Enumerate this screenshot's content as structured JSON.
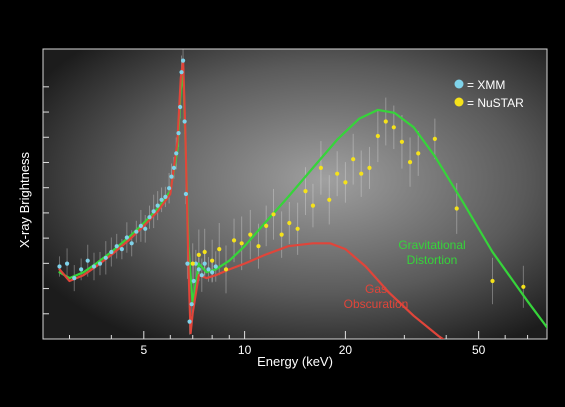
{
  "chart_data": {
    "type": "scatter",
    "title": "",
    "xlabel": "Energy (keV)",
    "ylabel": "X-ray Brightness",
    "xscale": "log",
    "xlim": [
      2.5,
      80
    ],
    "ylim": [
      0,
      10
    ],
    "x_ticks": [
      5,
      10,
      20,
      50
    ],
    "x_tick_labels": [
      "5",
      "10",
      "20",
      "50"
    ],
    "grid": false,
    "legend_position": "top-right",
    "legend": [
      {
        "label": "= XMM",
        "color": "#7fd3ea"
      },
      {
        "label": "= NuSTAR",
        "color": "#f5e21a"
      }
    ],
    "annotations": [
      {
        "text": "Gravitational",
        "color": "#36d43a"
      },
      {
        "text": "Distortion",
        "color": "#36d43a"
      },
      {
        "text": "Gas",
        "color": "#e0453a"
      },
      {
        "text": "Obscuration",
        "color": "#e0453a"
      }
    ],
    "series": [
      {
        "kind": "points",
        "color": "#7fd3ea",
        "x": [
          2.8,
          2.95,
          3.1,
          3.25,
          3.4,
          3.55,
          3.7,
          3.85,
          4.0,
          4.15,
          4.3,
          4.45,
          4.6,
          4.75,
          4.9,
          5.05,
          5.2,
          5.35,
          5.5,
          5.65,
          5.8,
          5.95,
          6.05,
          6.15,
          6.25,
          6.35,
          6.42,
          6.48,
          6.55,
          6.62,
          6.68,
          6.75,
          6.85,
          6.95,
          7.05,
          7.15,
          7.3,
          7.45,
          7.6,
          7.8,
          8.0,
          8.2
        ],
        "y": [
          2.5,
          2.6,
          2.1,
          2.4,
          2.7,
          2.5,
          2.6,
          2.8,
          3.0,
          3.2,
          3.1,
          3.5,
          3.3,
          3.7,
          3.9,
          3.8,
          4.2,
          4.4,
          4.6,
          4.8,
          4.9,
          5.2,
          5.6,
          5.9,
          6.4,
          7.1,
          8.0,
          9.2,
          9.6,
          7.5,
          5.0,
          2.6,
          0.6,
          1.2,
          2.0,
          2.6,
          2.4,
          2.2,
          2.6,
          2.4,
          2.3,
          2.5
        ]
      },
      {
        "kind": "points",
        "color": "#f5e21a",
        "x": [
          7.0,
          7.3,
          7.6,
          8.0,
          8.4,
          8.8,
          9.3,
          9.8,
          10.4,
          11.0,
          11.6,
          12.2,
          12.9,
          13.6,
          14.4,
          15.2,
          16.0,
          16.9,
          17.9,
          18.9,
          20.0,
          21.1,
          22.3,
          23.6,
          25.0,
          26.4,
          27.9,
          29.5,
          31.2,
          33.0,
          37.0,
          43.0,
          55.0,
          68.0
        ],
        "y": [
          2.6,
          2.9,
          3.0,
          2.7,
          3.1,
          2.4,
          3.4,
          3.3,
          3.6,
          3.2,
          3.9,
          4.3,
          3.6,
          4.0,
          3.8,
          5.1,
          4.6,
          5.9,
          4.8,
          5.7,
          5.4,
          6.2,
          5.7,
          5.9,
          7.0,
          7.5,
          7.3,
          6.8,
          6.1,
          6.4,
          6.9,
          4.5,
          2.0,
          1.8
        ]
      },
      {
        "kind": "model-line",
        "name": "Gravitational Distortion",
        "color": "#36d43a",
        "x": [
          2.8,
          3.0,
          3.3,
          3.6,
          4.0,
          4.5,
          5.0,
          5.5,
          6.0,
          6.3,
          6.45,
          6.55,
          6.65,
          6.8,
          7.0,
          7.3,
          7.7,
          8.2,
          9.0,
          10.0,
          11.5,
          13.5,
          16.0,
          19.0,
          22.0,
          25.0,
          28.0,
          32.0,
          37.0,
          45.0,
          55.0,
          70.0,
          80.0
        ],
        "y": [
          2.3,
          2.1,
          2.3,
          2.6,
          3.0,
          3.5,
          4.0,
          4.5,
          5.1,
          6.5,
          8.6,
          9.2,
          7.0,
          3.2,
          1.2,
          2.6,
          2.3,
          2.4,
          2.7,
          3.2,
          4.0,
          4.9,
          5.9,
          6.9,
          7.6,
          7.9,
          7.8,
          7.3,
          6.3,
          4.7,
          3.0,
          1.3,
          0.4
        ]
      },
      {
        "kind": "model-line",
        "name": "Gas Obscuration",
        "color": "#e0453a",
        "x": [
          2.8,
          3.0,
          3.3,
          3.6,
          4.0,
          4.5,
          5.0,
          5.5,
          6.0,
          6.3,
          6.45,
          6.55,
          6.65,
          6.8,
          6.9,
          7.0,
          7.3,
          7.7,
          8.2,
          9.0,
          10.0,
          11.5,
          13.5,
          16.0,
          18.0,
          20.0,
          23.0,
          27.0,
          32.0,
          38.0,
          45.0
        ],
        "y": [
          2.4,
          2.0,
          2.2,
          2.5,
          2.9,
          3.4,
          3.9,
          4.4,
          5.0,
          6.8,
          9.0,
          9.6,
          7.2,
          2.5,
          0.2,
          0.9,
          2.2,
          2.1,
          2.2,
          2.4,
          2.6,
          2.9,
          3.2,
          3.3,
          3.3,
          3.1,
          2.5,
          1.6,
          0.8,
          0.1,
          -0.5
        ]
      }
    ]
  }
}
